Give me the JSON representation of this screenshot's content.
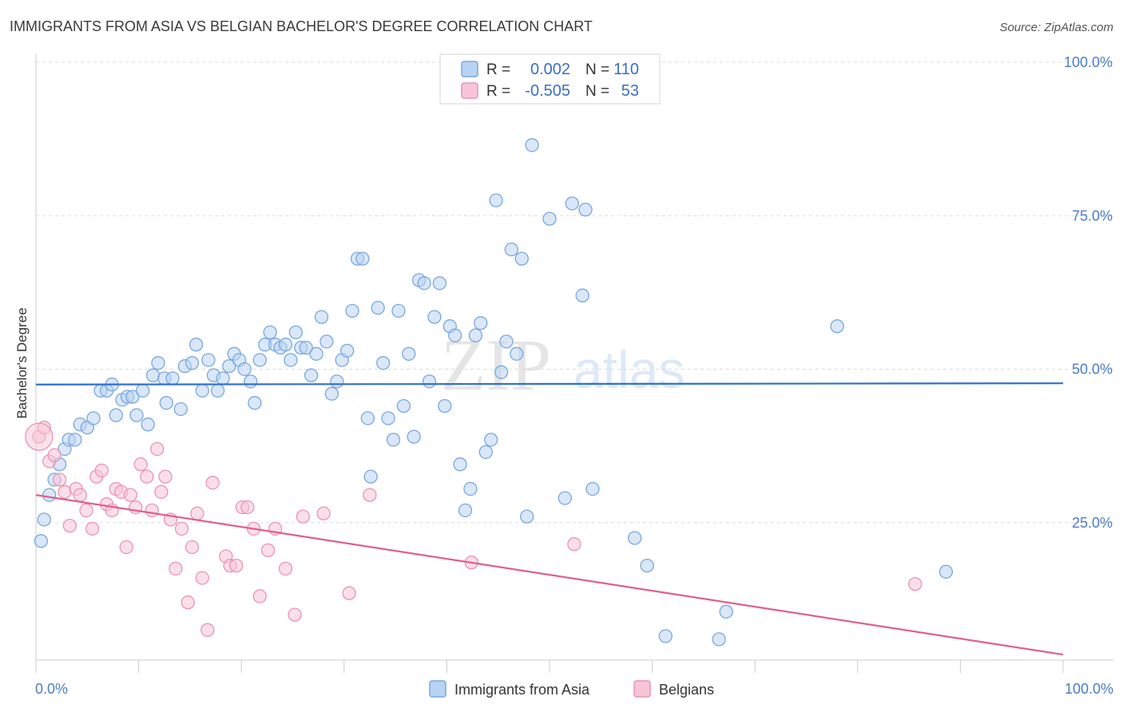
{
  "title": "IMMIGRANTS FROM ASIA VS BELGIAN BACHELOR'S DEGREE CORRELATION CHART",
  "source": "Source: ZipAtlas.com",
  "watermark": {
    "zip": "ZIP",
    "atlas": "atlas"
  },
  "legend_box": {
    "rows": [
      {
        "r_label": "R =",
        "r_value": "0.002",
        "n_label": "N =",
        "n_value": "110"
      },
      {
        "r_label": "R =",
        "r_value": "-0.505",
        "n_label": "N =",
        "n_value": "53"
      }
    ]
  },
  "colors": {
    "asia_fill": "#b9d3f3",
    "asia_stroke": "#7aa7de",
    "asia_line": "#2f6fd0",
    "belg_fill": "#f7c5d6",
    "belg_stroke": "#ea93b2",
    "belg_line": "#e05f8c",
    "tick_text": "#4a7cc9",
    "grid": "#dcdcdc"
  },
  "chart_data": {
    "type": "scatter",
    "title": "IMMIGRANTS FROM ASIA VS BELGIAN BACHELOR'S DEGREE CORRELATION CHART",
    "xlabel": "",
    "ylabel": "Bachelor's Degree",
    "xlim": [
      0,
      100
    ],
    "ylim": [
      0,
      100
    ],
    "x_tick_labels": [
      "0.0%",
      "100.0%"
    ],
    "y_ticks": [
      25,
      50,
      75,
      100
    ],
    "y_tick_labels": [
      "25.0%",
      "50.0%",
      "75.0%",
      "100.0%"
    ],
    "grid": true,
    "legend_position": "bottom",
    "series": [
      {
        "name": "Immigrants from Asia",
        "r": 0.002,
        "n": 110,
        "trend": {
          "x": [
            0,
            100
          ],
          "y": [
            47.5,
            47.7
          ]
        },
        "points": [
          [
            0.5,
            22
          ],
          [
            0.8,
            25.5
          ],
          [
            1.3,
            29.5
          ],
          [
            1.8,
            32
          ],
          [
            2.3,
            34.5
          ],
          [
            2.8,
            37
          ],
          [
            3.2,
            38.5
          ],
          [
            3.8,
            38.5
          ],
          [
            4.3,
            41
          ],
          [
            5.0,
            40.5
          ],
          [
            5.6,
            42
          ],
          [
            6.3,
            46.5
          ],
          [
            6.9,
            46.5
          ],
          [
            7.4,
            47.5
          ],
          [
            7.8,
            42.5
          ],
          [
            8.4,
            45
          ],
          [
            8.9,
            45.5
          ],
          [
            9.4,
            45.5
          ],
          [
            9.8,
            42.5
          ],
          [
            10.4,
            46.5
          ],
          [
            10.9,
            41
          ],
          [
            11.4,
            49
          ],
          [
            11.9,
            51
          ],
          [
            12.5,
            48.5
          ],
          [
            12.7,
            44.5
          ],
          [
            13.3,
            48.5
          ],
          [
            14.1,
            43.5
          ],
          [
            14.5,
            50.5
          ],
          [
            15.2,
            51
          ],
          [
            15.6,
            54
          ],
          [
            16.2,
            46.5
          ],
          [
            16.8,
            51.5
          ],
          [
            17.3,
            49
          ],
          [
            17.7,
            46.5
          ],
          [
            18.2,
            48.5
          ],
          [
            18.8,
            50.5
          ],
          [
            19.3,
            52.5
          ],
          [
            19.8,
            51.5
          ],
          [
            20.3,
            50
          ],
          [
            20.9,
            48
          ],
          [
            21.3,
            44.5
          ],
          [
            21.8,
            51.5
          ],
          [
            22.3,
            54
          ],
          [
            22.8,
            56
          ],
          [
            23.3,
            54
          ],
          [
            23.8,
            53.5
          ],
          [
            24.3,
            54
          ],
          [
            24.8,
            51.5
          ],
          [
            25.3,
            56
          ],
          [
            25.8,
            53.5
          ],
          [
            26.3,
            53.5
          ],
          [
            26.8,
            49
          ],
          [
            27.3,
            52.5
          ],
          [
            27.8,
            58.5
          ],
          [
            28.3,
            54.5
          ],
          [
            28.8,
            46
          ],
          [
            29.3,
            48
          ],
          [
            29.8,
            51.5
          ],
          [
            30.3,
            53
          ],
          [
            30.8,
            59.5
          ],
          [
            31.3,
            68
          ],
          [
            31.8,
            68
          ],
          [
            32.3,
            42
          ],
          [
            32.6,
            32.5
          ],
          [
            33.3,
            60
          ],
          [
            33.8,
            51
          ],
          [
            34.3,
            42
          ],
          [
            34.8,
            38.5
          ],
          [
            35.3,
            59.5
          ],
          [
            35.8,
            44
          ],
          [
            36.3,
            52.5
          ],
          [
            36.8,
            39
          ],
          [
            37.3,
            64.5
          ],
          [
            37.8,
            64
          ],
          [
            38.3,
            48
          ],
          [
            38.8,
            58.5
          ],
          [
            39.3,
            64
          ],
          [
            39.8,
            44
          ],
          [
            40.3,
            57
          ],
          [
            40.8,
            55.5
          ],
          [
            41.3,
            34.5
          ],
          [
            41.8,
            27
          ],
          [
            42.3,
            30.5
          ],
          [
            42.8,
            55.5
          ],
          [
            43.3,
            57.5
          ],
          [
            43.8,
            36.5
          ],
          [
            44.3,
            38.5
          ],
          [
            44.8,
            77.5
          ],
          [
            45.3,
            49.5
          ],
          [
            45.8,
            54.5
          ],
          [
            46.3,
            69.5
          ],
          [
            46.8,
            52.5
          ],
          [
            47.3,
            68
          ],
          [
            47.8,
            26
          ],
          [
            48.3,
            86.5
          ],
          [
            50.0,
            74.5
          ],
          [
            51.5,
            29
          ],
          [
            52.2,
            77
          ],
          [
            53.2,
            62
          ],
          [
            53.5,
            76
          ],
          [
            54.2,
            30.5
          ],
          [
            58.3,
            22.5
          ],
          [
            59.5,
            18
          ],
          [
            61.3,
            6.5
          ],
          [
            66.5,
            6
          ],
          [
            67.2,
            10.5
          ],
          [
            78.0,
            57
          ],
          [
            88.6,
            17
          ]
        ]
      },
      {
        "name": "Belgians",
        "r": -0.505,
        "n": 53,
        "trend": {
          "x": [
            0,
            100
          ],
          "y": [
            29.5,
            3.5
          ]
        },
        "points": [
          [
            0.3,
            39
          ],
          [
            0.8,
            40.5
          ],
          [
            1.3,
            35
          ],
          [
            1.8,
            36
          ],
          [
            2.3,
            32
          ],
          [
            2.8,
            30
          ],
          [
            3.3,
            24.5
          ],
          [
            3.9,
            30.5
          ],
          [
            4.3,
            29.5
          ],
          [
            4.9,
            27
          ],
          [
            5.5,
            24
          ],
          [
            5.9,
            32.5
          ],
          [
            6.4,
            33.5
          ],
          [
            6.9,
            28
          ],
          [
            7.4,
            27
          ],
          [
            7.8,
            30.5
          ],
          [
            8.3,
            30
          ],
          [
            8.8,
            21
          ],
          [
            9.2,
            29.5
          ],
          [
            9.7,
            27.5
          ],
          [
            10.2,
            34.5
          ],
          [
            10.8,
            32.5
          ],
          [
            11.3,
            27
          ],
          [
            11.8,
            37
          ],
          [
            12.2,
            30
          ],
          [
            12.6,
            32.5
          ],
          [
            13.1,
            25.5
          ],
          [
            13.6,
            17.5
          ],
          [
            14.2,
            24
          ],
          [
            14.8,
            12
          ],
          [
            15.2,
            21
          ],
          [
            15.7,
            26.5
          ],
          [
            16.2,
            16
          ],
          [
            16.7,
            7.5
          ],
          [
            17.2,
            31.5
          ],
          [
            18.5,
            19.5
          ],
          [
            18.9,
            18
          ],
          [
            19.5,
            18
          ],
          [
            20.1,
            27.5
          ],
          [
            20.6,
            27.5
          ],
          [
            21.2,
            24
          ],
          [
            21.8,
            13
          ],
          [
            22.6,
            20.5
          ],
          [
            23.3,
            24
          ],
          [
            24.3,
            17.5
          ],
          [
            25.2,
            10
          ],
          [
            26.0,
            26
          ],
          [
            28.0,
            26.5
          ],
          [
            30.5,
            13.5
          ],
          [
            32.5,
            29.5
          ],
          [
            42.4,
            18.5
          ],
          [
            52.4,
            21.5
          ],
          [
            85.6,
            15
          ]
        ]
      }
    ]
  },
  "bottom_legend": [
    {
      "label": "Immigrants from Asia"
    },
    {
      "label": "Belgians"
    }
  ]
}
